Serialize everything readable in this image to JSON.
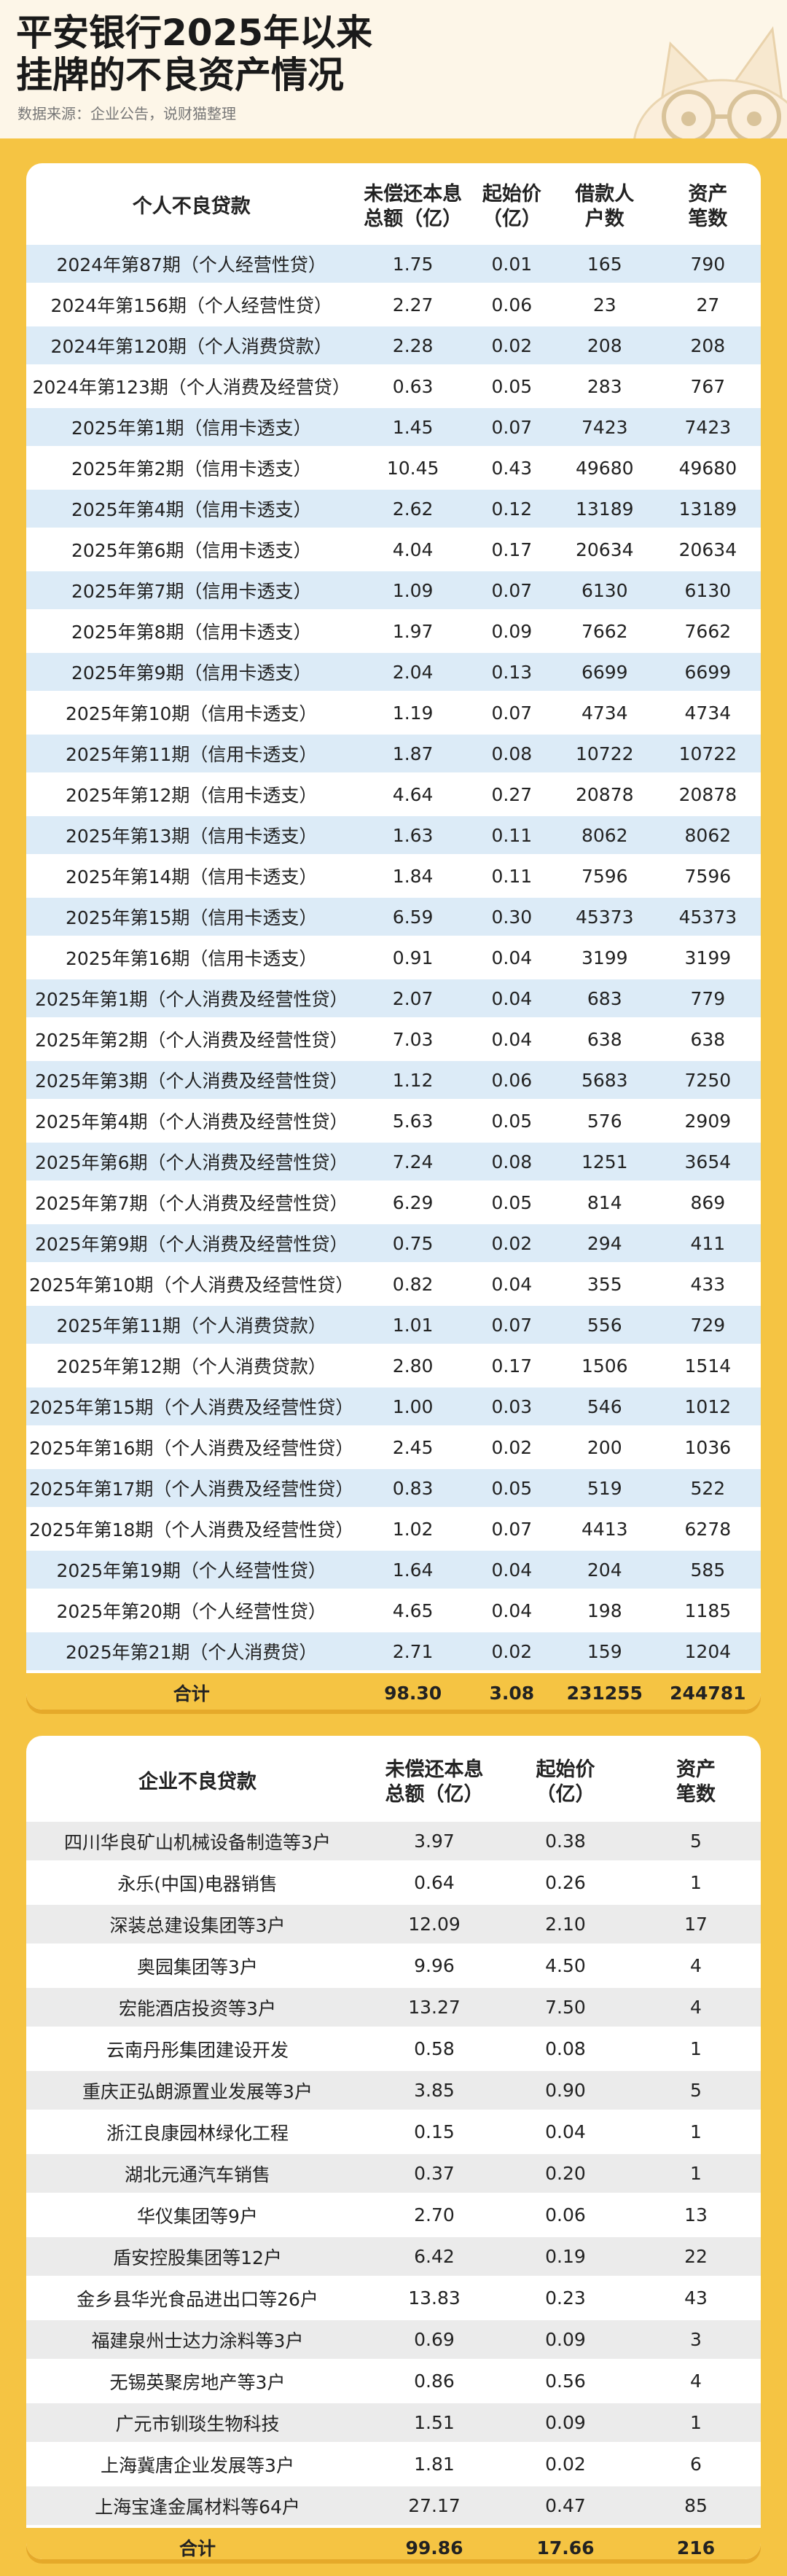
{
  "header": {
    "title_line1": "平安银行2025年以来",
    "title_line2": "挂牌的不良资产情况",
    "source": "数据来源：企业公告，说财猫整理"
  },
  "personal": {
    "headers": [
      "个人不良贷款",
      "未偿还本息\n总额（亿）",
      "起始价\n（亿）",
      "借款人\n户数",
      "资产\n笔数"
    ],
    "h0": "个人不良贷款",
    "h1a": "未偿还本息",
    "h1b": "总额（亿）",
    "h2a": "起始价",
    "h2b": "（亿）",
    "h3a": "借款人",
    "h3b": "户数",
    "h4a": "资产",
    "h4b": "笔数",
    "rows": [
      [
        "2024年第87期（个人经营性贷）",
        "1.75",
        "0.01",
        "165",
        "790"
      ],
      [
        "2024年第156期（个人经营性贷）",
        "2.27",
        "0.06",
        "23",
        "27"
      ],
      [
        "2024年第120期（个人消费贷款）",
        "2.28",
        "0.02",
        "208",
        "208"
      ],
      [
        "2024年第123期（个人消费及经营贷）",
        "0.63",
        "0.05",
        "283",
        "767"
      ],
      [
        "2025年第1期（信用卡透支）",
        "1.45",
        "0.07",
        "7423",
        "7423"
      ],
      [
        "2025年第2期（信用卡透支）",
        "10.45",
        "0.43",
        "49680",
        "49680"
      ],
      [
        "2025年第4期（信用卡透支）",
        "2.62",
        "0.12",
        "13189",
        "13189"
      ],
      [
        "2025年第6期（信用卡透支）",
        "4.04",
        "0.17",
        "20634",
        "20634"
      ],
      [
        "2025年第7期（信用卡透支）",
        "1.09",
        "0.07",
        "6130",
        "6130"
      ],
      [
        "2025年第8期（信用卡透支）",
        "1.97",
        "0.09",
        "7662",
        "7662"
      ],
      [
        "2025年第9期（信用卡透支）",
        "2.04",
        "0.13",
        "6699",
        "6699"
      ],
      [
        "2025年第10期（信用卡透支）",
        "1.19",
        "0.07",
        "4734",
        "4734"
      ],
      [
        "2025年第11期（信用卡透支）",
        "1.87",
        "0.08",
        "10722",
        "10722"
      ],
      [
        "2025年第12期（信用卡透支）",
        "4.64",
        "0.27",
        "20878",
        "20878"
      ],
      [
        "2025年第13期（信用卡透支）",
        "1.63",
        "0.11",
        "8062",
        "8062"
      ],
      [
        "2025年第14期（信用卡透支）",
        "1.84",
        "0.11",
        "7596",
        "7596"
      ],
      [
        "2025年第15期（信用卡透支）",
        "6.59",
        "0.30",
        "45373",
        "45373"
      ],
      [
        "2025年第16期（信用卡透支）",
        "0.91",
        "0.04",
        "3199",
        "3199"
      ],
      [
        "2025年第1期（个人消费及经营性贷）",
        "2.07",
        "0.04",
        "683",
        "779"
      ],
      [
        "2025年第2期（个人消费及经营性贷）",
        "7.03",
        "0.04",
        "638",
        "638"
      ],
      [
        "2025年第3期（个人消费及经营性贷）",
        "1.12",
        "0.06",
        "5683",
        "7250"
      ],
      [
        "2025年第4期（个人消费及经营性贷）",
        "5.63",
        "0.05",
        "576",
        "2909"
      ],
      [
        "2025年第6期（个人消费及经营性贷）",
        "7.24",
        "0.08",
        "1251",
        "3654"
      ],
      [
        "2025年第7期（个人消费及经营性贷）",
        "6.29",
        "0.05",
        "814",
        "869"
      ],
      [
        "2025年第9期（个人消费及经营性贷）",
        "0.75",
        "0.02",
        "294",
        "411"
      ],
      [
        "2025年第10期（个人消费及经营性贷）",
        "0.82",
        "0.04",
        "355",
        "433"
      ],
      [
        "2025年第11期（个人消费贷款）",
        "1.01",
        "0.07",
        "556",
        "729"
      ],
      [
        "2025年第12期（个人消费贷款）",
        "2.80",
        "0.17",
        "1506",
        "1514"
      ],
      [
        "2025年第15期（个人消费及经营性贷）",
        "1.00",
        "0.03",
        "546",
        "1012"
      ],
      [
        "2025年第16期（个人消费及经营性贷）",
        "2.45",
        "0.02",
        "200",
        "1036"
      ],
      [
        "2025年第17期（个人消费及经营性贷）",
        "0.83",
        "0.05",
        "519",
        "522"
      ],
      [
        "2025年第18期（个人消费及经营性贷）",
        "1.02",
        "0.07",
        "4413",
        "6278"
      ],
      [
        "2025年第19期（个人经营性贷）",
        "1.64",
        "0.04",
        "204",
        "585"
      ],
      [
        "2025年第20期（个人经营性贷）",
        "4.65",
        "0.04",
        "198",
        "1185"
      ],
      [
        "2025年第21期（个人消费贷）",
        "2.71",
        "0.02",
        "159",
        "1204"
      ]
    ],
    "total": [
      "合计",
      "98.30",
      "3.08",
      "231255",
      "244781"
    ]
  },
  "corporate": {
    "h0": "企业不良贷款",
    "h1a": "未偿还本息",
    "h1b": "总额（亿）",
    "h2a": "起始价",
    "h2b": "（亿）",
    "h3a": "资产",
    "h3b": "笔数",
    "rows": [
      [
        "四川华良矿山机械设备制造等3户",
        "3.97",
        "0.38",
        "5"
      ],
      [
        "永乐(中国)电器销售",
        "0.64",
        "0.26",
        "1"
      ],
      [
        "深装总建设集团等3户",
        "12.09",
        "2.10",
        "17"
      ],
      [
        "奥园集团等3户",
        "9.96",
        "4.50",
        "4"
      ],
      [
        "宏能酒店投资等3户",
        "13.27",
        "7.50",
        "4"
      ],
      [
        "云南丹彤集团建设开发",
        "0.58",
        "0.08",
        "1"
      ],
      [
        "重庆正弘朗源置业发展等3户",
        "3.85",
        "0.90",
        "5"
      ],
      [
        "浙江良康园林绿化工程",
        "0.15",
        "0.04",
        "1"
      ],
      [
        "湖北元通汽车销售",
        "0.37",
        "0.20",
        "1"
      ],
      [
        "华仪集团等9户",
        "2.70",
        "0.06",
        "13"
      ],
      [
        "盾安控股集团等12户",
        "6.42",
        "0.19",
        "22"
      ],
      [
        "金乡县华光食品进出口等26户",
        "13.83",
        "0.23",
        "43"
      ],
      [
        "福建泉州士达力涂料等3户",
        "0.69",
        "0.09",
        "3"
      ],
      [
        "无锡英聚房地产等3户",
        "0.86",
        "0.56",
        "4"
      ],
      [
        "广元市钏琰生物科技",
        "1.51",
        "0.09",
        "1"
      ],
      [
        "上海冀唐企业发展等3户",
        "1.81",
        "0.02",
        "6"
      ],
      [
        "上海宝逢金属材料等64户",
        "27.17",
        "0.47",
        "85"
      ]
    ],
    "total": [
      "合计",
      "99.86",
      "17.66",
      "216"
    ]
  },
  "colors": {
    "background": "#f5c443",
    "row_blue": "#dcebf7",
    "row_grey": "#ebebeb",
    "total_row": "#f5c443"
  }
}
